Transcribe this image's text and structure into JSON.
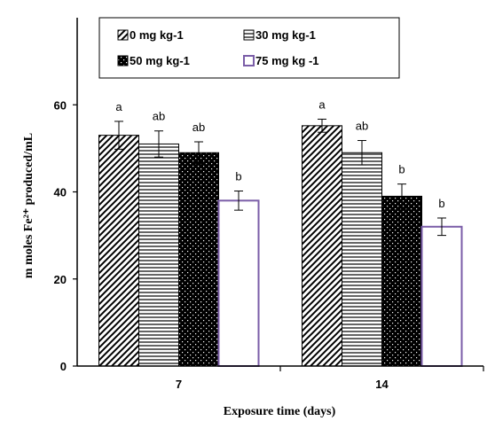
{
  "chart_data": {
    "type": "bar",
    "categories": [
      "7",
      "14"
    ],
    "series": [
      {
        "name": "0 mg kg-1",
        "values": [
          53,
          55.2
        ],
        "errors": [
          3.2,
          1.5
        ],
        "labels": [
          "a",
          "a"
        ],
        "pattern": "diagonal",
        "color": "#000000"
      },
      {
        "name": "30 mg kg-1",
        "values": [
          51,
          49
        ],
        "errors": [
          3.0,
          2.8
        ],
        "labels": [
          "ab",
          "ab"
        ],
        "pattern": "horizontal",
        "color": "#000000"
      },
      {
        "name": "50 mg kg-1",
        "values": [
          49,
          39
        ],
        "errors": [
          2.5,
          2.8
        ],
        "labels": [
          "ab",
          "b"
        ],
        "pattern": "dots",
        "color": "#000000"
      },
      {
        "name": "75 mg kg -1",
        "values": [
          38,
          32
        ],
        "errors": [
          2.2,
          2.0
        ],
        "labels": [
          "b",
          "b"
        ],
        "pattern": "outline",
        "color": "#7b5ea8"
      }
    ],
    "xlabel": "Exposure time (days)",
    "ylabel": "m moles Fe²⁺ produced/mL",
    "ylim": [
      0,
      80
    ],
    "yticks": [
      "0",
      "20",
      "40",
      "60"
    ],
    "grid": false,
    "legend_position": "top"
  }
}
